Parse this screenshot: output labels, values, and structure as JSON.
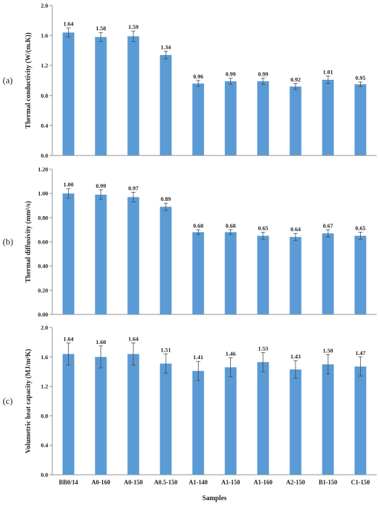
{
  "chart_data": [
    {
      "type": "bar",
      "panel_label": "(a)",
      "ylabel": "Thermal conductivity (W/(m.K))",
      "xlabel": "",
      "ylim": [
        0,
        2.0
      ],
      "yticks": [
        "0.0",
        "0.4",
        "0.8",
        "1.2",
        "1.6",
        "2.0"
      ],
      "categories": [
        "BB0/14",
        "A0-160",
        "A0-150",
        "A0.5-150",
        "A1-140",
        "A1-150",
        "A1-160",
        "A2-150",
        "B1-150",
        "C1-150"
      ],
      "values": [
        1.64,
        1.58,
        1.59,
        1.34,
        0.96,
        0.99,
        0.99,
        0.92,
        1.01,
        0.95
      ],
      "value_labels": [
        "1.64",
        "1.58",
        "1.59",
        "1.34",
        "0.96",
        "0.99",
        "0.99",
        "0.92",
        "1.01",
        "0.95"
      ],
      "errors": [
        0.06,
        0.06,
        0.07,
        0.05,
        0.04,
        0.04,
        0.04,
        0.04,
        0.05,
        0.03
      ],
      "grid": false,
      "bar_color": "#5b9bd5"
    },
    {
      "type": "bar",
      "panel_label": "(b)",
      "ylabel": "Thermal diffusivity (mm²/s)",
      "xlabel": "",
      "ylim": [
        0,
        1.2
      ],
      "yticks": [
        "0.00",
        "0.20",
        "0.40",
        "0.60",
        "0.80",
        "1.00",
        "1.20"
      ],
      "categories": [
        "BB0/14",
        "A0-160",
        "A0-150",
        "A0.5-150",
        "A1-140",
        "A1-150",
        "A1-160",
        "A2-150",
        "B1-150",
        "C1-150"
      ],
      "values": [
        1.0,
        0.99,
        0.97,
        0.89,
        0.68,
        0.68,
        0.65,
        0.64,
        0.67,
        0.65
      ],
      "value_labels": [
        "1.00",
        "0.99",
        "0.97",
        "0.89",
        "0.68",
        "0.68",
        "0.65",
        "0.64",
        "0.67",
        "0.65"
      ],
      "errors": [
        0.04,
        0.04,
        0.04,
        0.03,
        0.02,
        0.02,
        0.03,
        0.03,
        0.03,
        0.03
      ],
      "grid": false,
      "bar_color": "#5b9bd5"
    },
    {
      "type": "bar",
      "panel_label": "(c)",
      "ylabel": "Volumetric heat capacity (MJ/m³K)",
      "xlabel": "Samples",
      "ylim": [
        0,
        2.0
      ],
      "yticks": [
        "0.0",
        "0.4",
        "0.8",
        "1.2",
        "1.6",
        "2.0"
      ],
      "categories": [
        "BB0/14",
        "A0-160",
        "A0-150",
        "A0.5-150",
        "A1-140",
        "A1-150",
        "A1-160",
        "A2-150",
        "B1-150",
        "C1-150"
      ],
      "values": [
        1.64,
        1.6,
        1.64,
        1.51,
        1.41,
        1.46,
        1.53,
        1.43,
        1.5,
        1.47
      ],
      "value_labels": [
        "1.64",
        "1.60",
        "1.64",
        "1.51",
        "1.41",
        "1.46",
        "1.53",
        "1.43",
        "1.50",
        "1.47"
      ],
      "errors": [
        0.15,
        0.15,
        0.15,
        0.13,
        0.13,
        0.13,
        0.13,
        0.12,
        0.13,
        0.13
      ],
      "grid": false,
      "bar_color": "#5b9bd5"
    }
  ]
}
